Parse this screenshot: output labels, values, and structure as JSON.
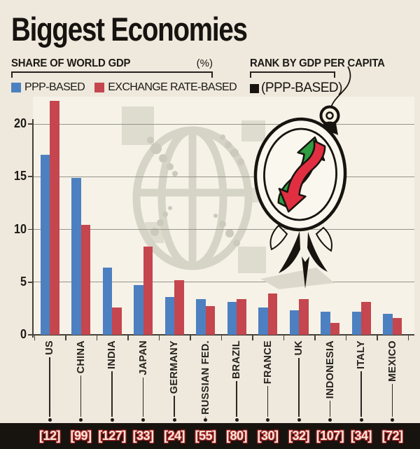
{
  "title": "Biggest Economies",
  "left_header": {
    "title": "SHARE OF WORLD GDP",
    "unit": "(%)"
  },
  "right_header": {
    "title": "RANK BY GDP PER CAPITA",
    "subtitle": "(PPP-BASED)"
  },
  "colors": {
    "ppp_blue": "#4d80c0",
    "exchange_red": "#c5464e",
    "strip_bg": "#17130f",
    "strip_text": "#f4ead9",
    "strip_glow_red": "#b3262c",
    "badge_up_green": "#2e9c40",
    "badge_down_red": "#e12f41",
    "paper": "#eee9dc",
    "watermark_gray": "#d6d3c7"
  },
  "chart_data": {
    "type": "bar",
    "title": "SHARE OF WORLD GDP (%)",
    "categories": [
      "US",
      "CHINA",
      "INDIA",
      "JAPAN",
      "GERMANY",
      "RUSSIAN FED.",
      "BRAZIL",
      "FRANCE",
      "UK",
      "INDONESIA",
      "ITALY",
      "MEXICO"
    ],
    "series": [
      {
        "name": "PPP-BASED",
        "color": "#4d80c0",
        "values": [
          17.1,
          14.9,
          6.4,
          4.7,
          3.6,
          3.4,
          3.1,
          2.6,
          2.3,
          2.2,
          2.2,
          2.0
        ]
      },
      {
        "name": "EXCHANGE RATE-BASED",
        "color": "#c5464e",
        "values": [
          22.2,
          10.4,
          2.6,
          8.4,
          5.2,
          2.7,
          3.4,
          3.9,
          3.4,
          1.1,
          3.1,
          1.6
        ]
      }
    ],
    "rank_by_gdp_per_capita_ppp": [
      12,
      99,
      127,
      33,
      24,
      55,
      80,
      30,
      32,
      107,
      34,
      72
    ],
    "rank_format": "[n]",
    "yticks": [
      0,
      5,
      10,
      15,
      20
    ],
    "ylim": [
      0,
      22.5
    ],
    "grid": true,
    "legend_position": "top-left"
  }
}
